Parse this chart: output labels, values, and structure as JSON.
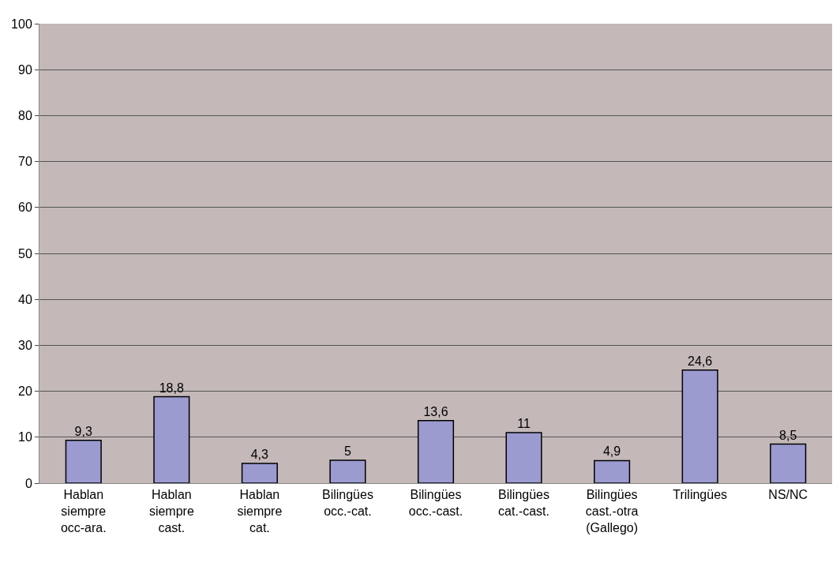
{
  "chart_data": {
    "type": "bar",
    "categories": [
      "Hablan siempre occ-ara.",
      "Hablan siempre cast.",
      "Hablan siempre cat.",
      "Bilingües occ.-cat.",
      "Bilingües occ.-cast.",
      "Bilingües cat.-cast.",
      "Bilingües cast.-otra (Gallego)",
      "Trilingües",
      "NS/NC"
    ],
    "values": [
      9.3,
      18.8,
      4.3,
      5,
      13.6,
      11,
      4.9,
      24.6,
      8.5
    ],
    "value_labels": [
      "9,3",
      "18,8",
      "4,3",
      "5",
      "13,6",
      "11",
      "4,9",
      "24,6",
      "8,5"
    ],
    "color": "#9b9bd0",
    "ylim": [
      0,
      100
    ],
    "yticks": [
      0,
      10,
      20,
      30,
      40,
      50,
      60,
      70,
      80,
      90,
      100
    ],
    "grid": "y",
    "legend": false
  }
}
